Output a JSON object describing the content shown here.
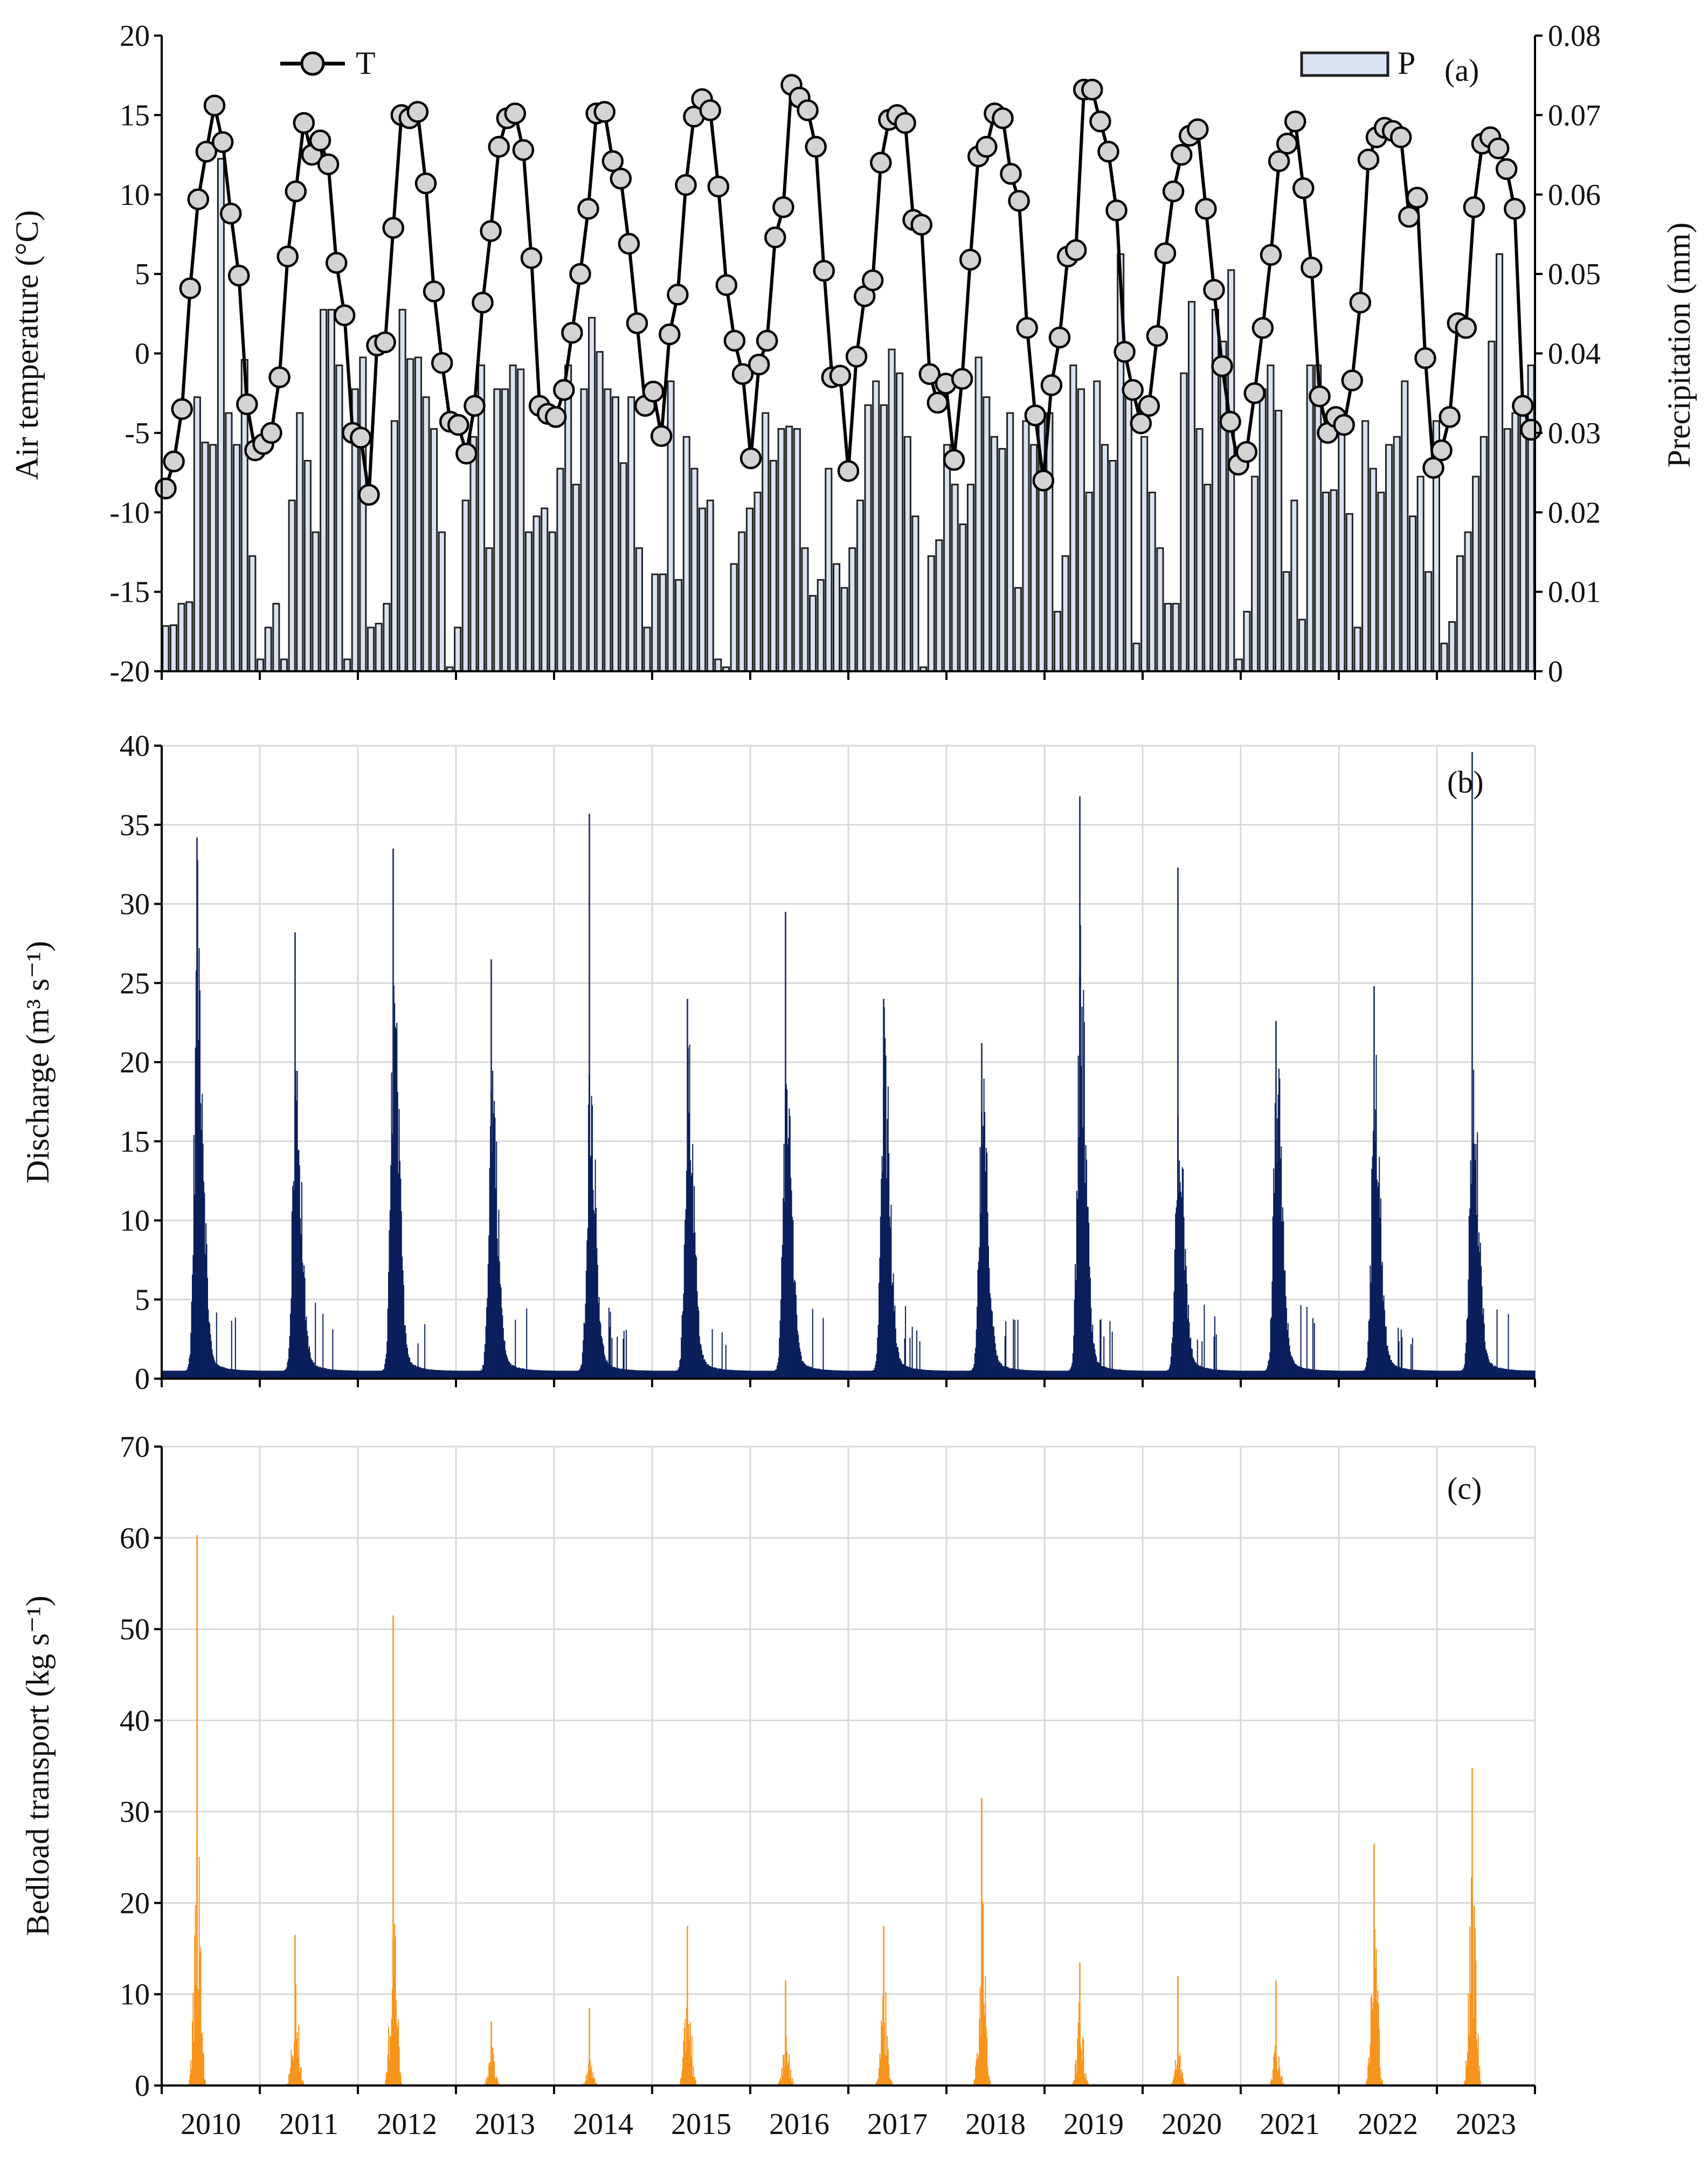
{
  "years": [
    "2010",
    "2011",
    "2012",
    "2013",
    "2014",
    "2015",
    "2016",
    "2017",
    "2018",
    "2019",
    "2020",
    "2021",
    "2022",
    "2023"
  ],
  "colors": {
    "temperature": "#000000",
    "temp_marker": "#d3d3d3",
    "precip_fill": "#d9e2f1",
    "precip_edge": "#222222",
    "discharge": "#0b1f5c",
    "bedload": "#f7941d",
    "grid": "#d9d9d9"
  },
  "chart_data": [
    {
      "type": "line",
      "panel_label": "(a)",
      "ylabel": "Air temperature (°C)",
      "y2label": "Precipitation (mm)",
      "ylim": [
        -20,
        20
      ],
      "y_ticks": [
        "-20",
        "-15",
        "-10",
        "-5",
        "0",
        "5",
        "10",
        "15",
        "20"
      ],
      "y2lim": [
        0,
        0.08
      ],
      "y2_ticks": [
        "0",
        "0.01",
        "0.02",
        "0.03",
        "0.04",
        "0.05",
        "0.06",
        "0.07",
        "0.08"
      ],
      "grid": false,
      "legend_position": "top",
      "series": [
        {
          "name": "T",
          "type": "line",
          "axis": "left",
          "marker": "circle",
          "values": [
            -8.5,
            -6.8,
            -3.5,
            4.1,
            9.7,
            12.7,
            15.6,
            13.3,
            8.8,
            4.9,
            -3.2,
            -6.1,
            -5.7,
            -5.0,
            -1.5,
            6.1,
            10.2,
            14.5,
            12.5,
            13.4,
            11.9,
            5.7,
            2.4,
            -5.0,
            -5.3,
            -8.9,
            0.5,
            0.7,
            7.9,
            15.0,
            14.8,
            15.2,
            10.7,
            3.9,
            -0.6,
            -4.3,
            -4.5,
            -6.3,
            -3.3,
            3.2,
            7.7,
            13.0,
            14.8,
            15.1,
            12.8,
            6.0,
            -3.3,
            -3.8,
            -4.0,
            -2.3,
            1.3,
            5.0,
            9.1,
            15.1,
            15.2,
            12.1,
            11.0,
            6.9,
            1.9,
            -3.3,
            -2.4,
            -5.2,
            1.2,
            3.7,
            10.6,
            14.9,
            16.0,
            15.3,
            10.5,
            4.3,
            0.8,
            -1.3,
            -6.6,
            -0.7,
            0.8,
            7.3,
            9.2,
            16.9,
            16.1,
            15.3,
            13.0,
            5.2,
            -1.5,
            -1.4,
            -7.4,
            -0.2,
            3.6,
            4.6,
            12.0,
            14.7,
            15.0,
            14.5,
            8.4,
            8.1,
            -1.3,
            -3.1,
            -1.9,
            -6.7,
            -1.6,
            5.9,
            12.4,
            13.0,
            15.1,
            14.8,
            11.3,
            9.6,
            1.6,
            -3.9,
            -8.0,
            -2.0,
            1.0,
            6.1,
            6.5,
            16.6,
            16.6,
            14.6,
            12.7,
            9.0,
            0.1,
            -2.3,
            -4.4,
            -3.3,
            1.1,
            6.3,
            10.2,
            12.5,
            13.7,
            14.1,
            9.1,
            4.0,
            -0.8,
            -4.3,
            -7.0,
            -6.2,
            -2.5,
            1.6,
            6.2,
            12.1,
            13.2,
            14.6,
            10.4,
            5.4,
            -2.7,
            -5.0,
            -4.0,
            -4.5,
            -1.7,
            3.2,
            12.2,
            13.6,
            14.2,
            14.0,
            13.6,
            8.6,
            9.8,
            -0.3,
            -7.2,
            -6.1,
            -4.0,
            1.9,
            1.6,
            9.2,
            13.2,
            13.6,
            12.9,
            11.6,
            9.1,
            -3.3,
            -4.8
          ]
        },
        {
          "name": "P",
          "type": "bar",
          "axis": "right",
          "values": [
            0.0057,
            0.0058,
            0.0085,
            0.0087,
            0.0345,
            0.0288,
            0.0285,
            0.0645,
            0.0325,
            0.0285,
            0.0392,
            0.0145,
            0.0015,
            0.0055,
            0.0085,
            0.0015,
            0.0215,
            0.0325,
            0.0265,
            0.0175,
            0.0455,
            0.0455,
            0.0385,
            0.0015,
            0.0355,
            0.0395,
            0.0055,
            0.006,
            0.0085,
            0.0315,
            0.0455,
            0.0393,
            0.0395,
            0.0345,
            0.0305,
            0.0175,
            0.0005,
            0.0055,
            0.0215,
            0.0295,
            0.0385,
            0.0155,
            0.0355,
            0.0355,
            0.0385,
            0.038,
            0.0175,
            0.0195,
            0.0205,
            0.0175,
            0.0255,
            0.0385,
            0.0235,
            0.0355,
            0.0445,
            0.0402,
            0.0355,
            0.0345,
            0.0262,
            0.0345,
            0.0155,
            0.0055,
            0.0122,
            0.0122,
            0.0365,
            0.0115,
            0.0295,
            0.0255,
            0.0205,
            0.0215,
            0.0015,
            0.0005,
            0.0135,
            0.0175,
            0.0205,
            0.0225,
            0.0325,
            0.0265,
            0.0305,
            0.0308,
            0.0305,
            0.0155,
            0.0095,
            0.0115,
            0.0255,
            0.0135,
            0.0105,
            0.0155,
            0.0215,
            0.0335,
            0.0365,
            0.0335,
            0.0405,
            0.0375,
            0.0295,
            0.0195,
            0.0005,
            0.0145,
            0.0165,
            0.0285,
            0.0235,
            0.0185,
            0.0235,
            0.0395,
            0.0345,
            0.0295,
            0.028,
            0.0325,
            0.0105,
            0.0315,
            0.0285,
            0.032,
            0.0325,
            0.0075,
            0.0145,
            0.0385,
            0.0355,
            0.0225,
            0.0365,
            0.0285,
            0.0265,
            0.0525,
            0.0355,
            0.0035,
            0.0295,
            0.0225,
            0.0155,
            0.0085,
            0.0085,
            0.0375,
            0.0465,
            0.0305,
            0.0235,
            0.0455,
            0.0415,
            0.0505,
            0.0015,
            0.0075,
            0.0245,
            0.0355,
            0.0385,
            0.0328,
            0.0125,
            0.0215,
            0.0065,
            0.0385,
            0.0385,
            0.0225,
            0.0228,
            0.0305,
            0.0198,
            0.0055,
            0.0315,
            0.0255,
            0.0225,
            0.0285,
            0.0295,
            0.0365,
            0.0195,
            0.0245,
            0.0125,
            0.0315,
            0.0035,
            0.0062,
            0.0145,
            0.0175,
            0.0245,
            0.0295,
            0.0415,
            0.0525,
            0.0305,
            0.0325,
            0.0345,
            0.0385
          ]
        }
      ]
    },
    {
      "type": "area",
      "panel_label": "(b)",
      "ylabel": "Discharge (m³ s⁻¹)",
      "ylim": [
        0,
        40
      ],
      "y_ticks": [
        "0",
        "5",
        "10",
        "15",
        "20",
        "25",
        "30",
        "35",
        "40"
      ],
      "grid": true,
      "series": [
        {
          "name": "Discharge",
          "peaks": [
            {
              "year": 2010,
              "peak_mid": 30.5,
              "top": 34.2
            },
            {
              "year": 2011,
              "peak_mid": 20.5,
              "top": 28.2
            },
            {
              "year": 2012,
              "peak_mid": 25.0,
              "top": 33.5
            },
            {
              "year": 2013,
              "peak_mid": 20.5,
              "top": 26.5
            },
            {
              "year": 2014,
              "peak_mid": 20.0,
              "top": 35.7
            },
            {
              "year": 2015,
              "peak_mid": 21.0,
              "top": 24.0
            },
            {
              "year": 2016,
              "peak_mid": 20.5,
              "top": 29.5
            },
            {
              "year": 2017,
              "peak_mid": 21.5,
              "top": 24.0
            },
            {
              "year": 2018,
              "peak_mid": 18.0,
              "top": 21.2
            },
            {
              "year": 2019,
              "peak_mid": 27.0,
              "top": 36.8
            },
            {
              "year": 2020,
              "peak_mid": 17.0,
              "top": 32.3
            },
            {
              "year": 2021,
              "peak_mid": 20.0,
              "top": 22.6
            },
            {
              "year": 2022,
              "peak_mid": 19.5,
              "top": 24.8
            },
            {
              "year": 2023,
              "peak_mid": 20.0,
              "top": 39.6
            }
          ]
        }
      ]
    },
    {
      "type": "bar",
      "panel_label": "(c)",
      "ylabel": "Bedload transport (kg s⁻¹)",
      "ylim": [
        0,
        70
      ],
      "y_ticks": [
        "0",
        "10",
        "20",
        "30",
        "40",
        "50",
        "60",
        "70"
      ],
      "grid": true,
      "series": [
        {
          "name": "Bedload transport",
          "peaks": [
            {
              "year": 2010,
              "peak_mid": 29.0,
              "top": 60.3
            },
            {
              "year": 2011,
              "peak_mid": 12.0,
              "top": 16.5
            },
            {
              "year": 2012,
              "peak_mid": 25.0,
              "top": 51.5
            },
            {
              "year": 2013,
              "peak_mid": 4.5,
              "top": 7.0
            },
            {
              "year": 2014,
              "peak_mid": 3.0,
              "top": 8.5
            },
            {
              "year": 2015,
              "peak_mid": 13.0,
              "top": 17.5
            },
            {
              "year": 2016,
              "peak_mid": 6.0,
              "top": 11.5
            },
            {
              "year": 2017,
              "peak_mid": 12.0,
              "top": 17.5
            },
            {
              "year": 2018,
              "peak_mid": 21.0,
              "top": 31.5
            },
            {
              "year": 2019,
              "peak_mid": 10.0,
              "top": 13.5
            },
            {
              "year": 2020,
              "peak_mid": 4.5,
              "top": 12.0
            },
            {
              "year": 2021,
              "peak_mid": 5.5,
              "top": 11.5
            },
            {
              "year": 2022,
              "peak_mid": 22.0,
              "top": 26.5
            },
            {
              "year": 2023,
              "peak_mid": 28.0,
              "top": 34.8
            }
          ]
        }
      ]
    }
  ]
}
